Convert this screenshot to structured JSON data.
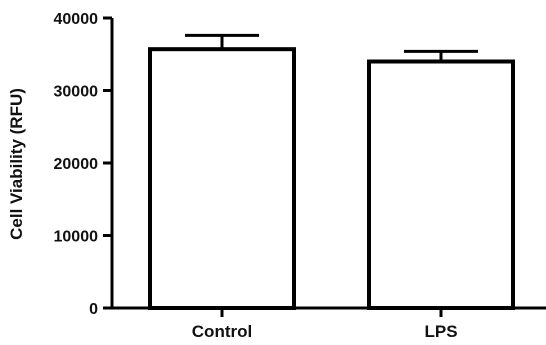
{
  "chart_data": {
    "type": "bar",
    "categories": [
      "Control",
      "LPS"
    ],
    "values": [
      35700,
      34000
    ],
    "error_upper": [
      37600,
      35400
    ],
    "title": "",
    "xlabel": "",
    "ylabel": "Cell Viability (RFU)",
    "ylim": [
      0,
      40000
    ],
    "yticks": [
      0,
      10000,
      20000,
      30000,
      40000
    ],
    "ytick_labels": [
      "0",
      "10000",
      "20000",
      "30000",
      "40000"
    ],
    "grid": false,
    "legend": "none",
    "colors": {
      "bar_fill": "#ffffff",
      "bar_stroke": "#000000",
      "axis": "#000000",
      "text": "#111111"
    }
  }
}
